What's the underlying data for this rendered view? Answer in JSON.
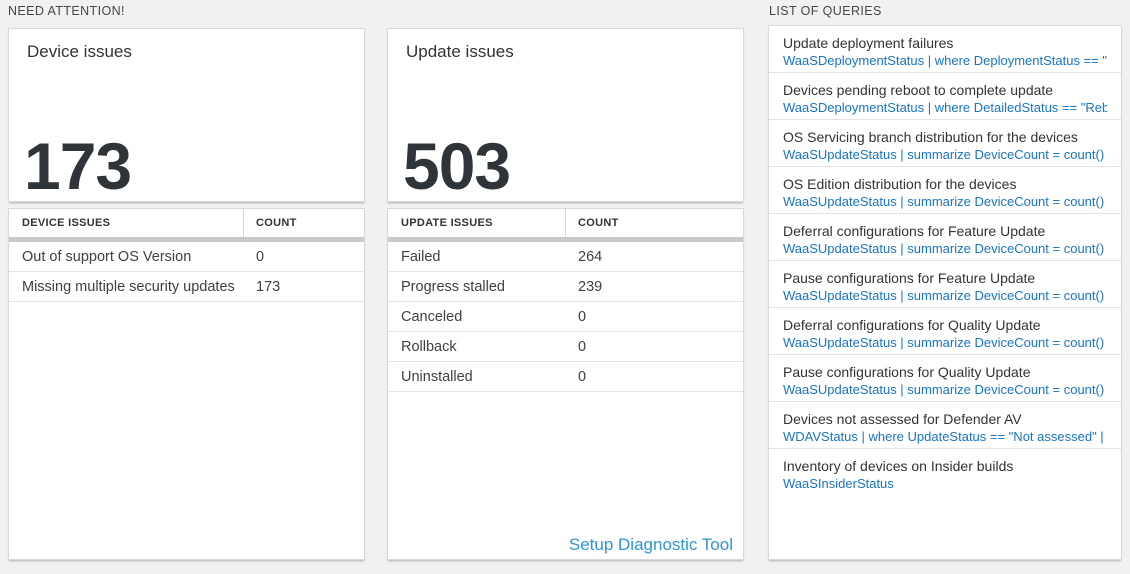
{
  "sections": {
    "need_attention": "NEED ATTENTION!",
    "list_of_queries": "LIST OF QUERIES"
  },
  "tiles": [
    {
      "label": "Device issues",
      "value": "173"
    },
    {
      "label": "Update issues",
      "value": "503"
    }
  ],
  "tables": [
    {
      "issue_col": "DEVICE ISSUES",
      "count_col": "COUNT",
      "rows": [
        {
          "issue": "Out of support OS Version",
          "count": "0"
        },
        {
          "issue": "Missing multiple security updates",
          "count": "173"
        }
      ]
    },
    {
      "issue_col": "UPDATE ISSUES",
      "count_col": "COUNT",
      "rows": [
        {
          "issue": "Failed",
          "count": "264"
        },
        {
          "issue": "Progress stalled",
          "count": "239"
        },
        {
          "issue": "Canceled",
          "count": "0"
        },
        {
          "issue": "Rollback",
          "count": "0"
        },
        {
          "issue": "Uninstalled",
          "count": "0"
        }
      ]
    }
  ],
  "links": {
    "setup_diagnostic": "Setup Diagnostic Tool"
  },
  "queries": [
    {
      "title": "Update deployment failures",
      "query": "WaaSDeploymentStatus | where DeploymentStatus == \"Failed\" |..."
    },
    {
      "title": "Devices pending reboot to complete update",
      "query": "WaaSDeploymentStatus | where DetailedStatus == \"Reboot pend..."
    },
    {
      "title": "OS Servicing branch distribution for the devices",
      "query": "WaaSUpdateStatus | summarize DeviceCount = count() by OSSer..."
    },
    {
      "title": "OS Edition distribution for the devices",
      "query": "WaaSUpdateStatus | summarize DeviceCount = count() by OSEdit..."
    },
    {
      "title": "Deferral configurations for Feature Update",
      "query": "WaaSUpdateStatus | summarize DeviceCount = count() by Featur..."
    },
    {
      "title": "Pause configurations for Feature Update",
      "query": "WaaSUpdateStatus | summarize DeviceCount = count() by Featur..."
    },
    {
      "title": "Deferral configurations for Quality Update",
      "query": "WaaSUpdateStatus | summarize DeviceCount = count() by Qualit..."
    },
    {
      "title": "Pause configurations for Quality Update",
      "query": "WaaSUpdateStatus | summarize DeviceCount = count() by Qualit..."
    },
    {
      "title": "Devices not assessed for Defender AV",
      "query": "WDAVStatus | where UpdateStatus == \"Not assessed\" | render ta..."
    },
    {
      "title": "Inventory of devices on Insider builds",
      "query": "WaaSInsiderStatus"
    }
  ],
  "colors": {
    "page_bg": "#f1f1f1",
    "query_link_blue": "#1b75bc",
    "setup_link_blue": "#2f96d0",
    "big_number": "#2f3439",
    "header_bar_gray": "#c9c9c9"
  }
}
